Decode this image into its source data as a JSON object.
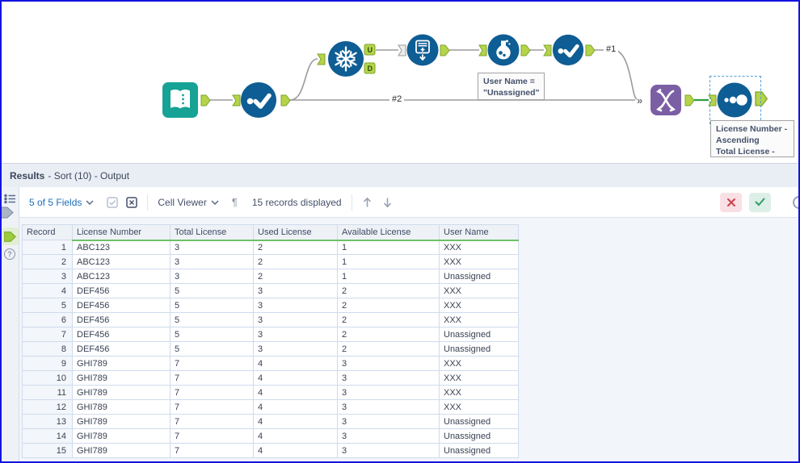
{
  "workflow": {
    "tools": [
      {
        "id": "input-data",
        "icon": "book-input-icon"
      },
      {
        "id": "select-1",
        "icon": "checkmark-select-icon"
      },
      {
        "id": "unique",
        "icon": "snowflake-unique-icon"
      },
      {
        "id": "summarize",
        "icon": "summarize-icon"
      },
      {
        "id": "formula",
        "icon": "flask-formula-icon"
      },
      {
        "id": "select-2",
        "icon": "checkmark-select-icon"
      },
      {
        "id": "union",
        "icon": "union-strands-icon"
      },
      {
        "id": "sort",
        "icon": "dots-sort-icon"
      }
    ],
    "anchor_labels": {
      "unique_u": "U",
      "unique_d": "D",
      "union_in": "»"
    },
    "connection_labels": {
      "branch_1": "#1",
      "branch_2": "#2"
    },
    "annotations": {
      "formula": {
        "line1": "User Name =",
        "line2": "\"Unassigned\""
      },
      "sort": {
        "line1": "License Number -",
        "line2": "Ascending",
        "line3": "Total License -"
      }
    }
  },
  "results": {
    "title": "Results",
    "title_context": "- Sort (10) - Output",
    "toolbar": {
      "fields_label": "5 of 5 Fields",
      "cell_viewer_label": "Cell Viewer",
      "records_label": "15 records displayed",
      "paragraph_glyph": "¶"
    },
    "table": {
      "columns": [
        "Record",
        "License Number",
        "Total License",
        "Used License",
        "Available License",
        "User Name"
      ],
      "rows": [
        [
          "1",
          "ABC123",
          "3",
          "2",
          "1",
          "XXX"
        ],
        [
          "2",
          "ABC123",
          "3",
          "2",
          "1",
          "XXX"
        ],
        [
          "3",
          "ABC123",
          "3",
          "2",
          "1",
          "Unassigned"
        ],
        [
          "4",
          "DEF456",
          "5",
          "3",
          "2",
          "XXX"
        ],
        [
          "5",
          "DEF456",
          "5",
          "3",
          "2",
          "XXX"
        ],
        [
          "6",
          "DEF456",
          "5",
          "3",
          "2",
          "XXX"
        ],
        [
          "7",
          "DEF456",
          "5",
          "3",
          "2",
          "Unassigned"
        ],
        [
          "8",
          "DEF456",
          "5",
          "3",
          "2",
          "Unassigned"
        ],
        [
          "9",
          "GHI789",
          "7",
          "4",
          "3",
          "XXX"
        ],
        [
          "10",
          "GHI789",
          "7",
          "4",
          "3",
          "XXX"
        ],
        [
          "11",
          "GHI789",
          "7",
          "4",
          "3",
          "XXX"
        ],
        [
          "12",
          "GHI789",
          "7",
          "4",
          "3",
          "XXX"
        ],
        [
          "13",
          "GHI789",
          "7",
          "4",
          "3",
          "Unassigned"
        ],
        [
          "14",
          "GHI789",
          "7",
          "4",
          "3",
          "Unassigned"
        ],
        [
          "15",
          "GHI789",
          "7",
          "4",
          "3",
          "Unassigned"
        ]
      ]
    }
  },
  "colors": {
    "tool_blue": "#0e5d94",
    "tool_teal": "#16a295",
    "tool_purple": "#7b5fa5",
    "anchor_green": "#b5d44a",
    "selected_wire_green": "#2e9e3e",
    "link_blue": "#1a6fba",
    "header_underline_green": "#6cc067",
    "cancel_red": "#cf3f4e",
    "apply_green": "#2f9e68",
    "window_border_blue": "#1414e0"
  }
}
